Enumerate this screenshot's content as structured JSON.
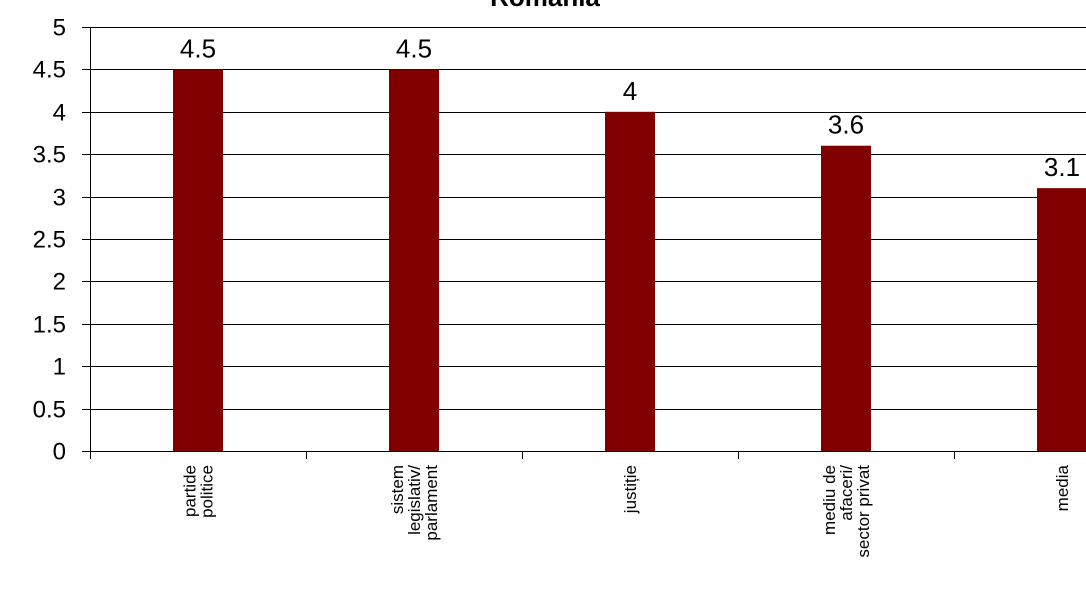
{
  "chart_data": {
    "type": "bar",
    "title": "Romania",
    "xlabel": "",
    "ylabel": "",
    "categories": [
      [
        "partide",
        "politice"
      ],
      [
        "sistem",
        "legislativ/",
        "parlament"
      ],
      [
        "justiție"
      ],
      [
        "mediu de",
        "afaceri/",
        "sector privat"
      ],
      [
        "media"
      ]
    ],
    "values": [
      4.5,
      4.5,
      4,
      3.6,
      3.1
    ],
    "data_labels": [
      "4.5",
      "4.5",
      "4",
      "3.6",
      "3.1"
    ],
    "y_ticks": [
      "0",
      "0.5",
      "1",
      "1.5",
      "2",
      "2.5",
      "3",
      "3.5",
      "4",
      "4.5",
      "5"
    ],
    "ylim": [
      0,
      5
    ],
    "grid": true,
    "legend": "none",
    "bar_color": "#800000"
  }
}
